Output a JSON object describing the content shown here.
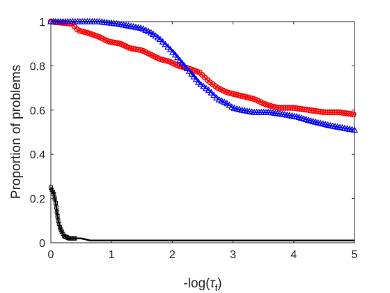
{
  "chart_data": {
    "type": "line",
    "title": "",
    "xlabel": "-log(τf)",
    "xlabel_parts": {
      "prefix": "-log(",
      "symbol": "τ",
      "subscript": "f",
      "suffix": ")"
    },
    "ylabel": "Proportion of problems",
    "xlim": [
      0,
      5
    ],
    "ylim": [
      0,
      1
    ],
    "xticks": [
      0,
      1,
      2,
      3,
      4,
      5
    ],
    "yticks": [
      0,
      0.2,
      0.4,
      0.6,
      0.8,
      1
    ],
    "xtick_labels": [
      "0",
      "1",
      "2",
      "3",
      "4",
      "5"
    ],
    "ytick_labels": [
      "0",
      "0.2",
      "0.4",
      "0.6",
      "0.8",
      "1"
    ],
    "grid": false,
    "legend": "none",
    "series": [
      {
        "color": "#ff0000",
        "marker": "circle",
        "x": [
          0,
          0.35,
          0.45,
          0.6,
          0.8,
          0.95,
          1.15,
          1.3,
          1.5,
          1.65,
          1.8,
          1.95,
          2.1,
          2.25,
          2.45,
          2.6,
          2.75,
          2.9,
          3.05,
          3.2,
          3.35,
          3.5,
          3.6,
          3.75,
          4.0,
          4.25,
          4.5,
          4.75,
          5.0
        ],
        "y": [
          1.0,
          0.99,
          0.96,
          0.95,
          0.93,
          0.91,
          0.9,
          0.88,
          0.87,
          0.85,
          0.83,
          0.82,
          0.8,
          0.79,
          0.77,
          0.73,
          0.7,
          0.68,
          0.67,
          0.66,
          0.65,
          0.63,
          0.62,
          0.61,
          0.61,
          0.6,
          0.59,
          0.59,
          0.58
        ]
      },
      {
        "color": "#0000ff",
        "marker": "triangle",
        "x": [
          0,
          0.8,
          1.1,
          1.3,
          1.5,
          1.65,
          1.8,
          1.95,
          2.05,
          2.2,
          2.3,
          2.45,
          2.6,
          2.75,
          2.9,
          3.0,
          3.15,
          3.35,
          3.6,
          3.85,
          4.05,
          4.3,
          4.6,
          4.8,
          5.0
        ],
        "y": [
          1.0,
          1.0,
          0.99,
          0.98,
          0.97,
          0.95,
          0.92,
          0.88,
          0.85,
          0.8,
          0.77,
          0.72,
          0.69,
          0.65,
          0.63,
          0.61,
          0.6,
          0.59,
          0.59,
          0.58,
          0.57,
          0.55,
          0.53,
          0.52,
          0.51
        ]
      },
      {
        "color": "#000000",
        "marker": "square",
        "x": [
          0,
          0.05,
          0.08,
          0.1,
          0.12,
          0.15,
          0.18,
          0.22,
          0.3,
          0.5,
          0.65,
          1.0,
          2.0,
          3.0,
          4.0,
          5.0
        ],
        "y": [
          0.25,
          0.22,
          0.18,
          0.14,
          0.1,
          0.07,
          0.05,
          0.03,
          0.02,
          0.02,
          0.01,
          0.01,
          0.01,
          0.01,
          0.01,
          0.01
        ]
      }
    ]
  }
}
